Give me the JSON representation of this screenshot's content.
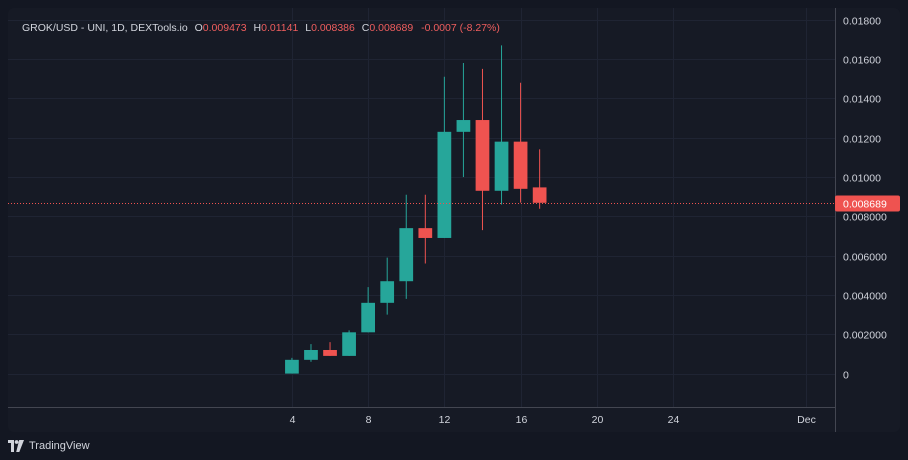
{
  "header": {
    "symbol_line": "GROK/USD - UNI, 1D, DEXTools.io",
    "open_label": "O",
    "open_value": "0.009473",
    "high_label": "H",
    "high_value": "0.01141",
    "low_label": "L",
    "low_value": "0.008386",
    "close_label": "C",
    "close_value": "0.008689",
    "change": "-0.0007 (-8.27%)"
  },
  "footer": {
    "brand": "TradingView"
  },
  "colors": {
    "up": "#26a69a",
    "down": "#ef5350",
    "background": "#161a25",
    "grid": "#1f2433",
    "text": "#d1d4dc"
  },
  "chart_data": {
    "type": "candlestick",
    "x_ticks": [
      "4",
      "8",
      "12",
      "16",
      "20",
      "24",
      "Dec"
    ],
    "x_tick_days": [
      4,
      8,
      12,
      16,
      20,
      24,
      31
    ],
    "y_ticks": [
      "0",
      "0.002000",
      "0.004000",
      "0.006000",
      "0.008000",
      "0.01000",
      "0.01200",
      "0.01400",
      "0.01600",
      "0.01800"
    ],
    "y_tick_values": [
      0,
      0.002,
      0.004,
      0.006,
      0.008,
      0.01,
      0.012,
      0.014,
      0.016,
      0.018
    ],
    "ylim": [
      -0.0017,
      0.0186
    ],
    "xlim": [
      -10.9,
      32.5
    ],
    "last_price": 0.008689,
    "last_price_label": "0.008689",
    "candles": [
      {
        "day": 4,
        "open": 0.0,
        "high": 0.0008,
        "low": 0.0,
        "close": 0.0007
      },
      {
        "day": 5,
        "open": 0.0007,
        "high": 0.0015,
        "low": 0.0006,
        "close": 0.0012
      },
      {
        "day": 6,
        "open": 0.0012,
        "high": 0.0016,
        "low": 0.0009,
        "close": 0.0009
      },
      {
        "day": 7,
        "open": 0.0009,
        "high": 0.0022,
        "low": 0.0009,
        "close": 0.0021
      },
      {
        "day": 8,
        "open": 0.0021,
        "high": 0.0044,
        "low": 0.0021,
        "close": 0.0036
      },
      {
        "day": 9,
        "open": 0.0036,
        "high": 0.0059,
        "low": 0.003,
        "close": 0.0047
      },
      {
        "day": 10,
        "open": 0.0047,
        "high": 0.0091,
        "low": 0.0038,
        "close": 0.0074
      },
      {
        "day": 11,
        "open": 0.0074,
        "high": 0.0091,
        "low": 0.0056,
        "close": 0.0069
      },
      {
        "day": 12,
        "open": 0.0069,
        "high": 0.0151,
        "low": 0.0069,
        "close": 0.0123
      },
      {
        "day": 13,
        "open": 0.0123,
        "high": 0.0158,
        "low": 0.01,
        "close": 0.0129
      },
      {
        "day": 14,
        "open": 0.0129,
        "high": 0.0155,
        "low": 0.0073,
        "close": 0.0093
      },
      {
        "day": 15,
        "open": 0.0093,
        "high": 0.0167,
        "low": 0.0086,
        "close": 0.0118
      },
      {
        "day": 16,
        "open": 0.0118,
        "high": 0.0148,
        "low": 0.0087,
        "close": 0.0094
      },
      {
        "day": 17,
        "open": 0.009473,
        "high": 0.01141,
        "low": 0.008386,
        "close": 0.008689
      }
    ]
  }
}
